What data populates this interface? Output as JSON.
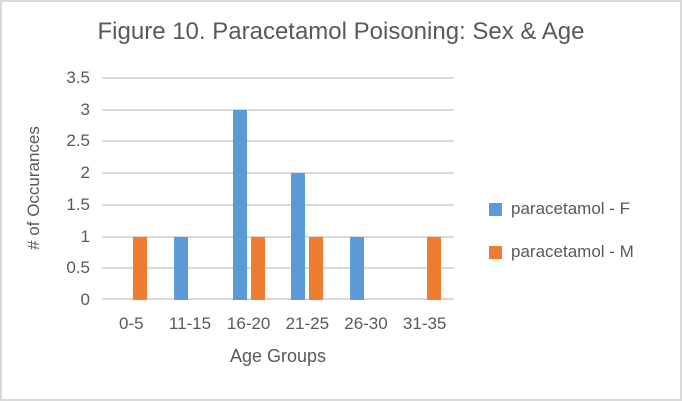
{
  "colors": {
    "background": "#ffffff",
    "frame_border": "#d9d9d9",
    "text": "#595959",
    "gridline": "#d9d9d9",
    "series_f": "#5B9BD5",
    "series_m": "#ED7D31"
  },
  "chart_data": {
    "type": "bar",
    "title": "Figure 10. Paracetamol Poisoning: Sex & Age",
    "xlabel": "Age Groups",
    "ylabel": "# of Occurances",
    "categories": [
      "0-5",
      "11-15",
      "16-20",
      "21-25",
      "26-30",
      "31-35"
    ],
    "series": [
      {
        "name": "paracetamol - F",
        "color": "#5B9BD5",
        "values": [
          0,
          1,
          3,
          2,
          1,
          0
        ]
      },
      {
        "name": "paracetamol - M",
        "color": "#ED7D31",
        "values": [
          1,
          0,
          1,
          1,
          0,
          1
        ]
      }
    ],
    "ylim": [
      0,
      3.5
    ],
    "ytick_labels": [
      "0",
      "0.5",
      "1",
      "1.5",
      "2",
      "2.5",
      "3",
      "3.5"
    ],
    "grid": true,
    "legend_position": "right"
  }
}
